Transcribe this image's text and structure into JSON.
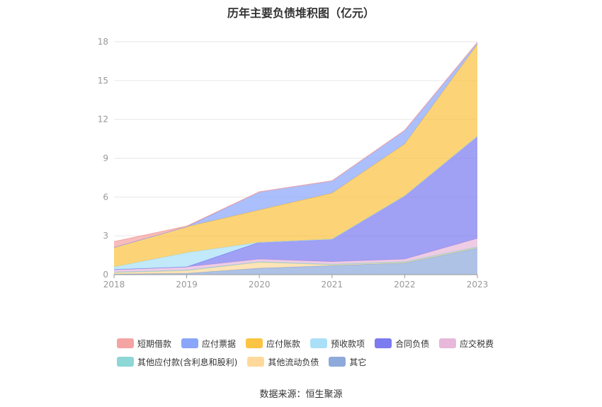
{
  "chart_data": {
    "type": "area",
    "stacked": true,
    "title": "历年主要负债堆积图（亿元）",
    "x": [
      "2018",
      "2019",
      "2020",
      "2021",
      "2022",
      "2023"
    ],
    "yticks": [
      "0",
      "3",
      "6",
      "9",
      "12",
      "15",
      "18"
    ],
    "ylim": [
      0,
      18
    ],
    "grid": true,
    "legend_position": "bottom",
    "series": [
      {
        "name": "其它",
        "color": "#8eaadb",
        "values": [
          0.05,
          0.1,
          0.5,
          0.7,
          0.9,
          2.05
        ]
      },
      {
        "name": "其他流动负债",
        "color": "#ffd99b",
        "values": [
          0.1,
          0.2,
          0.45,
          0.05,
          0.05,
          0.05
        ]
      },
      {
        "name": "其他应付款(含利息和股利)",
        "color": "#8dd7d6",
        "values": [
          0.05,
          0.05,
          0.05,
          0.05,
          0.05,
          0.05
        ]
      },
      {
        "name": "应交税费",
        "color": "#e8b8da",
        "values": [
          0.2,
          0.25,
          0.2,
          0.2,
          0.2,
          0.65
        ]
      },
      {
        "name": "合同负债",
        "color": "#7b7cf0",
        "values": [
          0.0,
          0.0,
          1.3,
          1.75,
          4.9,
          7.9
        ]
      },
      {
        "name": "预收款项",
        "color": "#a9e0f7",
        "values": [
          0.2,
          1.1,
          0.0,
          0.0,
          0.0,
          0.0
        ]
      },
      {
        "name": "应付账款",
        "color": "#fbc443",
        "values": [
          1.5,
          2.0,
          2.5,
          3.55,
          4.0,
          7.1
        ]
      },
      {
        "name": "应付票据",
        "color": "#8aa6fb",
        "values": [
          0.0,
          0.0,
          1.4,
          0.95,
          1.05,
          0.15
        ]
      },
      {
        "name": "短期借款",
        "color": "#f4a4a2",
        "values": [
          0.45,
          0.05,
          0.0,
          0.0,
          0.0,
          0.0
        ]
      }
    ]
  },
  "legend": {
    "rows": [
      [
        {
          "name": "短期借款",
          "color": "#f4a4a2"
        },
        {
          "name": "应付票据",
          "color": "#8aa6fb"
        },
        {
          "name": "应付账款",
          "color": "#fbc443"
        },
        {
          "name": "预收款项",
          "color": "#a9e0f7"
        },
        {
          "name": "合同负债",
          "color": "#7b7cf0"
        },
        {
          "name": "应交税费",
          "color": "#e8b8da"
        }
      ],
      [
        {
          "name": "其他应付款(含利息和股利)",
          "color": "#8dd7d6"
        },
        {
          "name": "其他流动负债",
          "color": "#ffd99b"
        },
        {
          "name": "其它",
          "color": "#8eaadb"
        }
      ]
    ]
  },
  "source": "数据来源：恒生聚源"
}
